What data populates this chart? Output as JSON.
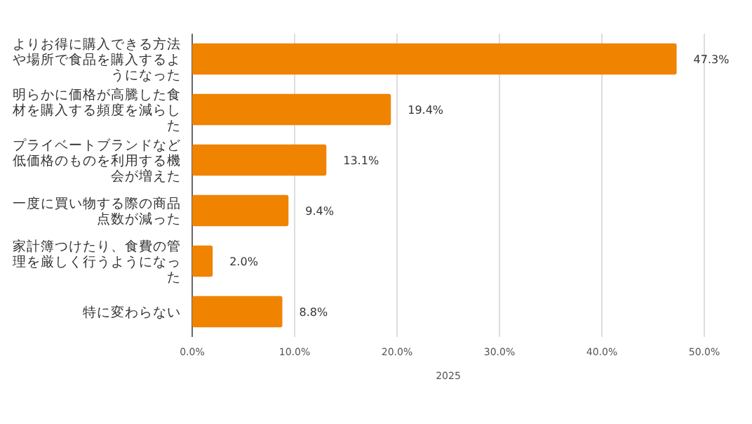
{
  "chart_data": {
    "type": "bar",
    "orientation": "horizontal",
    "xlabel": "2025",
    "categories": [
      "よりお得に購入できる方法や場所で食品を購入するようになった",
      "明らかに価格が高騰した食材を購入する頻度を減らした",
      "プライベートブランドなど低価格のものを利用する機会が増えた",
      "一度に買い物する際の商品点数が減った",
      "家計簿つけたり、食費の管理を厳しく行うようになった",
      "特に変わらない"
    ],
    "series": [
      {
        "color": "#f08300",
        "values": [
          47.3,
          19.4,
          13.1,
          9.4,
          2.0,
          8.8
        ]
      }
    ],
    "value_labels": [
      "47.3%",
      "19.4%",
      "13.1%",
      "9.4%",
      "2.0%",
      "8.8%"
    ],
    "xlim": [
      0,
      50
    ],
    "xticks": [
      {
        "value": 0,
        "label": "0.0%"
      },
      {
        "value": 10,
        "label": "10.0%"
      },
      {
        "value": 20,
        "label": "20.0%"
      },
      {
        "value": 30,
        "label": "30.0%"
      },
      {
        "value": 40,
        "label": "40.0%"
      },
      {
        "value": 50,
        "label": "50.0%"
      }
    ],
    "grid": "x"
  }
}
